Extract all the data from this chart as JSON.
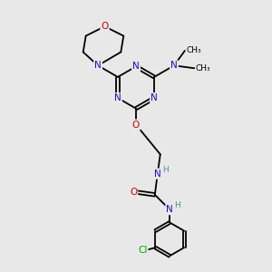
{
  "bg_color": "#e8e8e8",
  "atom_colors": {
    "N": "#1010cc",
    "O": "#cc0000",
    "Cl": "#00aa00",
    "C": "#000000",
    "H": "#5a9090"
  },
  "bond_color": "#000000",
  "font_size_atom": 7.5,
  "font_size_small": 6.5
}
